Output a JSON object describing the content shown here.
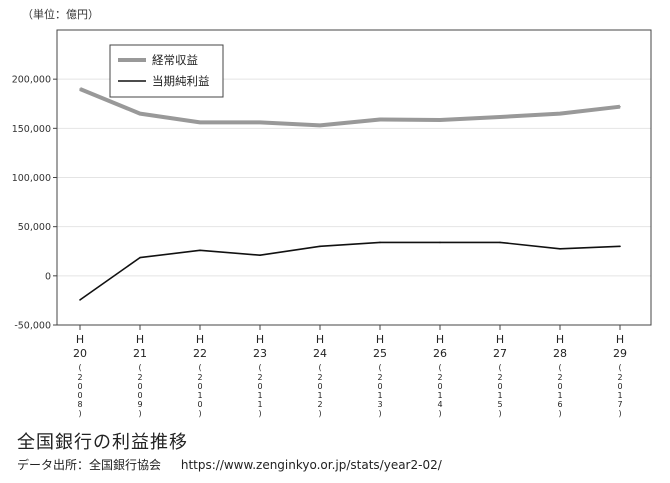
{
  "unit_label": "（単位：億円）",
  "page_title": "全国銀行の利益推移",
  "source": {
    "label": "データ出所：全国銀行協会",
    "url": "https://www.zenginkyo.or.jp/stats/year2-02/"
  },
  "colors": {
    "keijo_shueki": "#999999",
    "toki_junrieki": "#111111",
    "axis": "#444444",
    "grid": "#e4e4e4"
  },
  "chart_data": {
    "type": "line",
    "title": "全国銀行の利益推移",
    "ylabel": "（単位：億円）",
    "ylim": [
      -50000,
      250000
    ],
    "yticks": [
      -50000,
      0,
      50000,
      100000,
      150000,
      200000
    ],
    "ytick_labels": [
      "-50,000",
      "0",
      "50,000",
      "100,000",
      "150,000",
      "200,000"
    ],
    "grid": "horizontal",
    "legend_position": "top-left",
    "categories": [
      {
        "era": "H",
        "num": "20",
        "year": "2008"
      },
      {
        "era": "H",
        "num": "21",
        "year": "2009"
      },
      {
        "era": "H",
        "num": "22",
        "year": "2010"
      },
      {
        "era": "H",
        "num": "23",
        "year": "2011"
      },
      {
        "era": "H",
        "num": "24",
        "year": "2012"
      },
      {
        "era": "H",
        "num": "25",
        "year": "2013"
      },
      {
        "era": "H",
        "num": "26",
        "year": "2014"
      },
      {
        "era": "H",
        "num": "27",
        "year": "2015"
      },
      {
        "era": "H",
        "num": "28",
        "year": "2016"
      },
      {
        "era": "H",
        "num": "29",
        "year": "2017"
      }
    ],
    "series": [
      {
        "name": "経常収益",
        "values": [
          190000,
          165000,
          156000,
          156000,
          153000,
          159000,
          158500,
          161500,
          165000,
          172000
        ]
      },
      {
        "name": "当期純利益",
        "values": [
          -24500,
          18500,
          26000,
          21000,
          30000,
          34000,
          34000,
          34000,
          27500,
          30000
        ]
      }
    ]
  }
}
